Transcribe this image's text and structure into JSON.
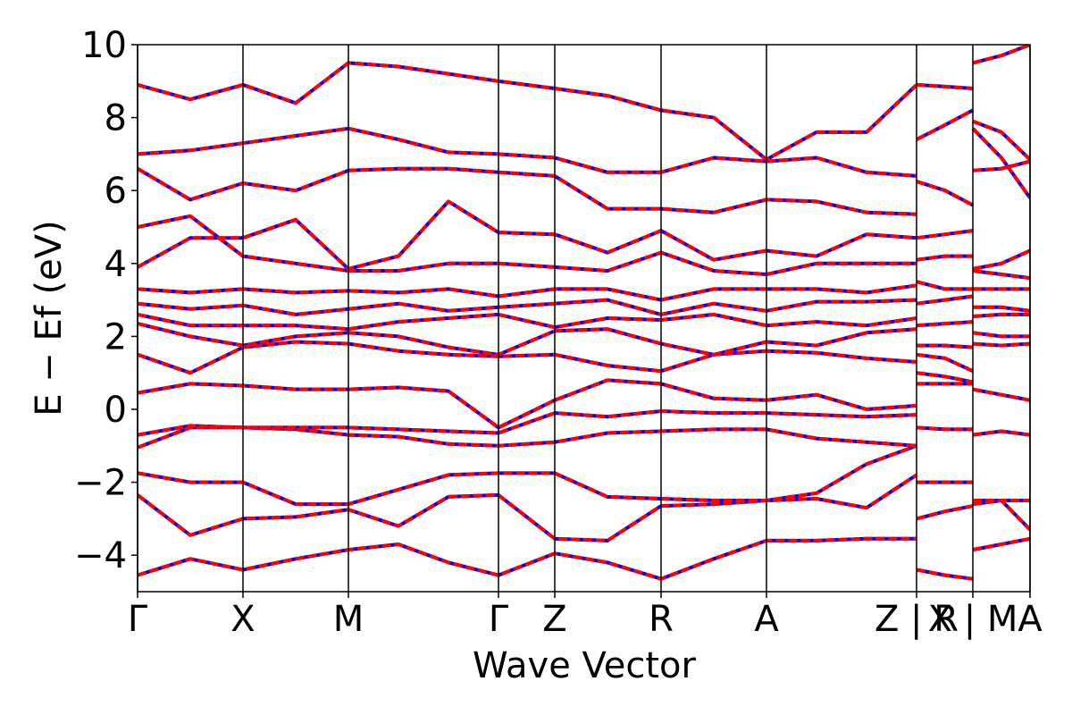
{
  "chart_data": {
    "type": "bandstructure",
    "xlabel": "Wave Vector",
    "ylabel": "E − Ef (eV)",
    "xlim": [
      0,
      9.99
    ],
    "ylim": [
      -5,
      10
    ],
    "xticks": [
      {
        "value": 0,
        "label": "Γ"
      },
      {
        "value": 1.18,
        "label": "X"
      },
      {
        "value": 2.36,
        "label": "M"
      },
      {
        "value": 4.04,
        "label": "Γ"
      },
      {
        "value": 4.67,
        "label": "Z"
      },
      {
        "value": 5.86,
        "label": "R"
      },
      {
        "value": 7.04,
        "label": "A"
      },
      {
        "value": 8.72,
        "label": "Z | R"
      },
      {
        "value": 9.35,
        "label": "X | M"
      },
      {
        "value": 9.99,
        "label": "A"
      }
    ],
    "yticks": [
      {
        "value": -4,
        "label": "−4"
      },
      {
        "value": -2,
        "label": "−2"
      },
      0,
      2,
      4,
      6,
      8,
      10
    ],
    "x": [
      0,
      0.59,
      1.18,
      1.77,
      2.36,
      2.92,
      3.48,
      4.04,
      4.67,
      5.26,
      5.86,
      6.45,
      7.04,
      7.6,
      8.16,
      8.72,
      8.72,
      8.72,
      9.04,
      9.35,
      9.35,
      9.35,
      9.67,
      9.99
    ],
    "series": [
      {
        "color": "#0000ff",
        "linestyle": "solid"
      },
      {
        "color": "#ff0000",
        "linestyle": "dashed"
      }
    ],
    "bands": [
      [
        -4.55,
        -4.1,
        -4.4,
        -4.1,
        -3.85,
        -3.7,
        -4.2,
        -4.55,
        -3.95,
        -4.2,
        -4.65,
        -4.1,
        -3.6,
        -3.6,
        -3.55,
        -3.55,
        null,
        -4.4,
        -4.55,
        -4.65,
        null,
        -3.85,
        -3.7,
        -3.55
      ],
      [
        -2.35,
        -3.45,
        -3.0,
        -2.95,
        -2.75,
        -3.2,
        -2.4,
        -2.35,
        -3.55,
        -3.6,
        -2.65,
        -2.6,
        -2.5,
        -2.45,
        -2.7,
        -1.8,
        null,
        -3.0,
        -2.8,
        -2.65,
        null,
        -2.6,
        -2.5,
        -3.3
      ],
      [
        -1.75,
        -2.0,
        -2.0,
        -2.6,
        -2.6,
        -2.2,
        -1.8,
        -1.75,
        -1.75,
        -2.4,
        -2.45,
        -2.5,
        -2.5,
        -2.3,
        -1.5,
        -1.0,
        null,
        -2.0,
        -2.0,
        -2.0,
        null,
        -2.5,
        -2.5,
        -2.5
      ],
      [
        -1.05,
        -0.5,
        -0.5,
        -0.55,
        -0.7,
        -0.75,
        -0.95,
        -1.0,
        -0.9,
        -0.65,
        -0.6,
        -0.55,
        -0.55,
        -0.8,
        -0.9,
        -1.0,
        null,
        -0.5,
        -0.55,
        -0.55,
        null,
        -0.7,
        -0.6,
        -0.7
      ],
      [
        -0.7,
        -0.45,
        -0.5,
        -0.5,
        -0.5,
        -0.55,
        -0.6,
        -0.65,
        -0.1,
        -0.2,
        -0.05,
        -0.1,
        -0.1,
        -0.15,
        -0.2,
        -0.15,
        null,
        0.7,
        0.7,
        0.7,
        null,
        0.55,
        0.4,
        0.25
      ],
      [
        0.45,
        0.7,
        0.65,
        0.55,
        0.55,
        0.6,
        0.5,
        -0.5,
        0.25,
        0.8,
        0.7,
        0.3,
        0.25,
        0.4,
        0.0,
        0.1,
        null,
        1.0,
        0.9,
        0.75,
        null,
        1.8,
        1.75,
        1.8
      ],
      [
        1.5,
        1.0,
        1.7,
        1.85,
        1.8,
        1.6,
        1.5,
        1.45,
        1.5,
        1.2,
        1.05,
        1.5,
        1.6,
        1.55,
        1.4,
        1.3,
        null,
        1.5,
        1.4,
        1.05,
        null,
        2.1,
        2.0,
        2.0
      ],
      [
        2.35,
        2.0,
        1.75,
        2.0,
        2.1,
        2.0,
        1.7,
        1.5,
        2.15,
        2.2,
        1.8,
        1.5,
        1.85,
        1.75,
        2.1,
        2.2,
        null,
        1.75,
        1.75,
        1.7,
        null,
        2.55,
        2.6,
        2.6
      ],
      [
        2.6,
        2.3,
        2.3,
        2.3,
        2.2,
        2.4,
        2.5,
        2.6,
        2.25,
        2.5,
        2.45,
        2.6,
        2.3,
        2.4,
        2.3,
        2.5,
        null,
        2.3,
        2.35,
        2.4,
        null,
        2.8,
        2.8,
        2.7
      ],
      [
        2.9,
        2.75,
        2.85,
        2.6,
        2.75,
        2.9,
        2.7,
        2.8,
        2.9,
        3.0,
        2.6,
        2.9,
        2.7,
        2.95,
        2.95,
        3.0,
        null,
        2.9,
        3.0,
        3.1,
        null,
        3.3,
        3.3,
        3.3
      ],
      [
        3.3,
        3.2,
        3.3,
        3.2,
        3.25,
        3.2,
        3.3,
        3.1,
        3.3,
        3.3,
        3.0,
        3.3,
        3.3,
        3.3,
        3.2,
        3.4,
        null,
        3.5,
        3.3,
        3.3,
        null,
        3.8,
        3.7,
        3.6
      ],
      [
        3.9,
        4.7,
        4.7,
        5.2,
        3.85,
        4.2,
        5.7,
        4.85,
        4.8,
        4.3,
        4.9,
        4.1,
        4.35,
        4.2,
        4.8,
        4.7,
        null,
        4.7,
        4.8,
        4.9,
        null,
        6.55,
        6.6,
        6.8
      ],
      [
        5.0,
        5.3,
        4.2,
        4.0,
        3.8,
        3.8,
        4.0,
        4.0,
        3.9,
        3.8,
        4.3,
        3.8,
        3.7,
        4.0,
        4.0,
        4.0,
        null,
        4.1,
        4.2,
        4.2,
        null,
        3.85,
        4.0,
        4.35
      ],
      [
        6.6,
        5.75,
        6.2,
        6.0,
        6.55,
        6.6,
        6.6,
        6.5,
        6.4,
        5.5,
        5.5,
        5.4,
        5.75,
        5.7,
        5.4,
        5.35,
        null,
        6.25,
        6.0,
        5.6,
        null,
        7.7,
        6.9,
        5.8
      ],
      [
        7.0,
        7.1,
        7.3,
        7.5,
        7.7,
        7.4,
        7.05,
        7.0,
        6.9,
        6.5,
        6.5,
        6.9,
        6.8,
        6.9,
        6.5,
        6.4,
        null,
        7.4,
        7.8,
        8.2,
        null,
        7.9,
        7.6,
        6.85
      ],
      [
        8.9,
        8.5,
        8.9,
        8.4,
        9.5,
        9.4,
        9.2,
        9.0,
        8.8,
        8.6,
        8.2,
        8.0,
        6.85,
        7.6,
        7.6,
        8.9,
        null,
        8.9,
        8.85,
        8.8,
        null,
        9.5,
        9.7,
        10.0
      ]
    ]
  }
}
